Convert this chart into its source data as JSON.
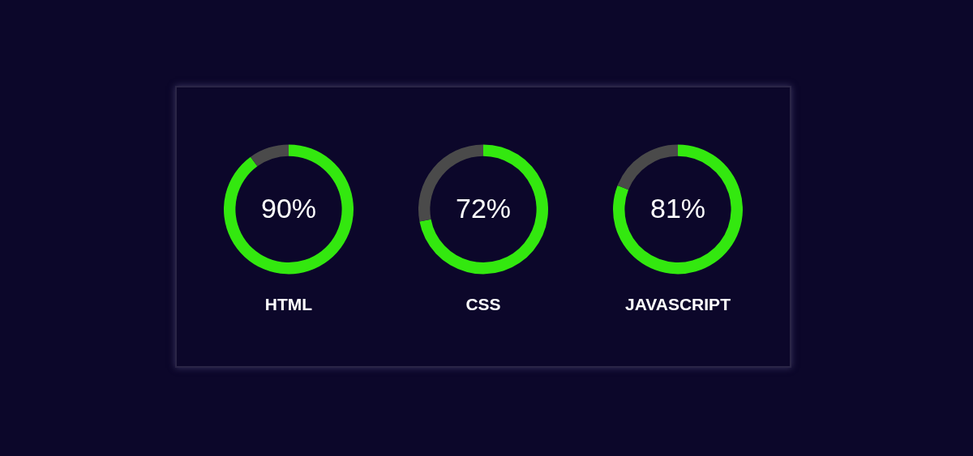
{
  "chart_data": [
    {
      "type": "donut",
      "title": "HTML",
      "categories": [
        null,
        null
      ],
      "values": [
        90,
        10
      ],
      "colors": [
        "#33e80f",
        "#4a4a4a"
      ],
      "value_labels": [
        "90%",
        null
      ],
      "legend": false
    },
    {
      "type": "donut",
      "title": "CSS",
      "categories": [
        null,
        null
      ],
      "values": [
        72,
        28
      ],
      "colors": [
        "#33e80f",
        "#4a4a4a"
      ],
      "value_labels": [
        "72%",
        null
      ],
      "legend": false
    },
    {
      "type": "donut",
      "title": "JAVASCRIPT",
      "categories": [
        null,
        null
      ],
      "values": [
        81,
        19
      ],
      "colors": [
        "#33e80f",
        "#4a4a4a"
      ],
      "value_labels": [
        "81%",
        null
      ],
      "legend": false
    }
  ]
}
